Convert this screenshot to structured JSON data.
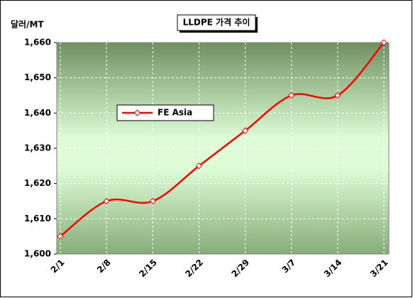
{
  "chart_data": {
    "type": "line",
    "title": "LLDPE 가격 추이",
    "y_label": "달러/MT",
    "categories": [
      "2/1",
      "2/8",
      "2/15",
      "2/22",
      "2/29",
      "3/7",
      "3/14",
      "3/21"
    ],
    "series": [
      {
        "name": "FE Asia",
        "color": "#ff0000",
        "values": [
          1605,
          1615,
          1615,
          1625,
          1635,
          1645,
          1645,
          1660
        ]
      }
    ],
    "ylim": [
      1600,
      1660
    ],
    "yticks": [
      {
        "value": 1600,
        "label": "1,600"
      },
      {
        "value": 1610,
        "label": "1,610"
      },
      {
        "value": 1620,
        "label": "1,620"
      },
      {
        "value": 1630,
        "label": "1,630"
      },
      {
        "value": 1640,
        "label": "1,640"
      },
      {
        "value": 1650,
        "label": "1,650"
      },
      {
        "value": 1660,
        "label": "1,660"
      }
    ],
    "grid": true
  }
}
